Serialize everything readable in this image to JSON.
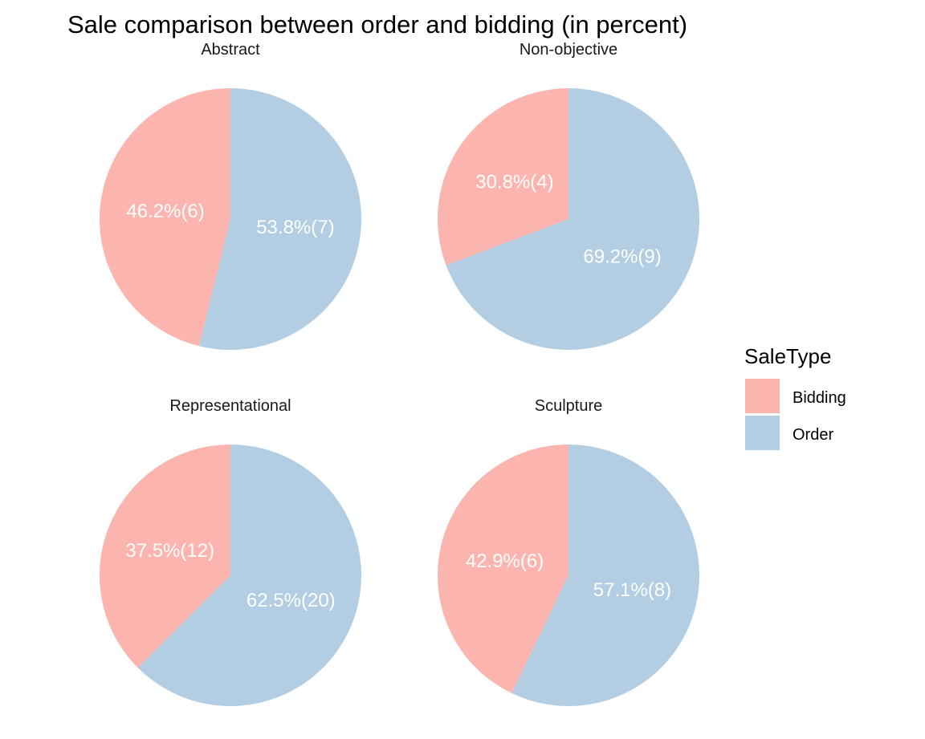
{
  "chart_data": {
    "type": "pie",
    "title": "Sale comparison between order and bidding (in percent)",
    "legend": {
      "title": "SaleType",
      "placement": "right",
      "entries": [
        {
          "name": "Bidding",
          "color": "#FBB4AE"
        },
        {
          "name": "Order",
          "color": "#B3CDE3"
        }
      ]
    },
    "facets": [
      {
        "title": "Abstract",
        "slices": [
          {
            "name": "Bidding",
            "count": 6,
            "percent": 46.2,
            "label": "46.2%(6)"
          },
          {
            "name": "Order",
            "count": 7,
            "percent": 53.8,
            "label": "53.8%(7)"
          }
        ]
      },
      {
        "title": "Non-objective",
        "slices": [
          {
            "name": "Bidding",
            "count": 4,
            "percent": 30.8,
            "label": "30.8%(4)"
          },
          {
            "name": "Order",
            "count": 9,
            "percent": 69.2,
            "label": "69.2%(9)"
          }
        ]
      },
      {
        "title": "Representational",
        "slices": [
          {
            "name": "Bidding",
            "count": 12,
            "percent": 37.5,
            "label": "37.5%(12)"
          },
          {
            "name": "Order",
            "count": 20,
            "percent": 62.5,
            "label": "62.5%(20)"
          }
        ]
      },
      {
        "title": "Sculpture",
        "slices": [
          {
            "name": "Bidding",
            "count": 6,
            "percent": 42.9,
            "label": "42.9%(6)"
          },
          {
            "name": "Order",
            "count": 8,
            "percent": 57.1,
            "label": "57.1%(8)"
          }
        ]
      }
    ]
  }
}
